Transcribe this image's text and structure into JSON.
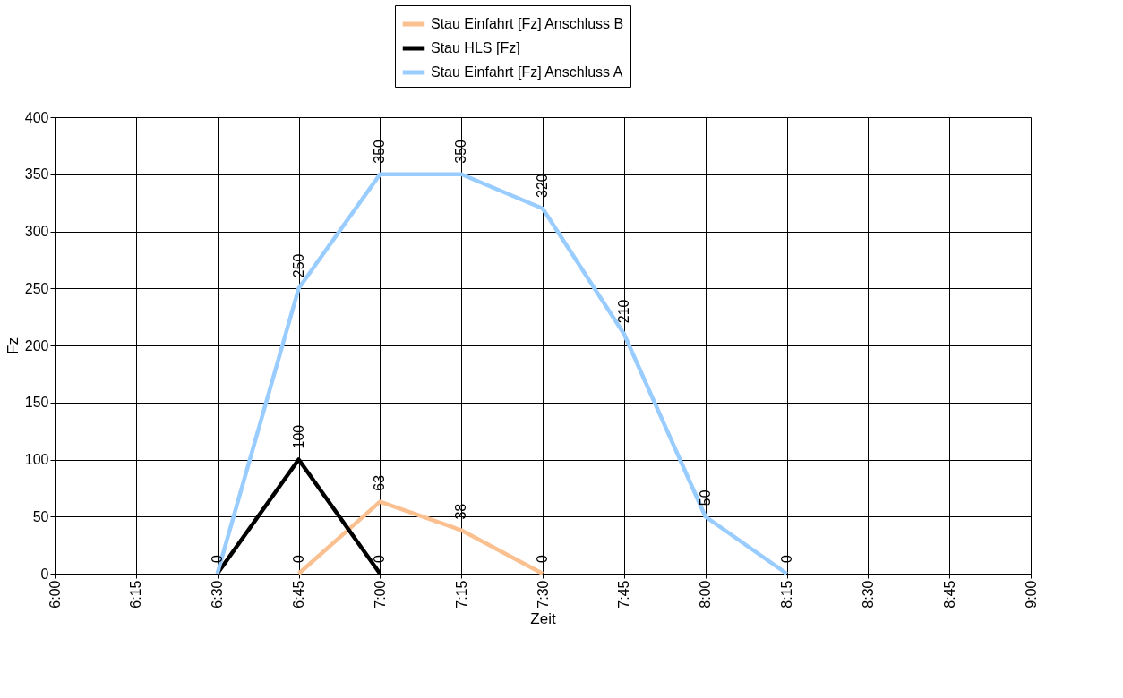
{
  "chart_data": {
    "type": "line",
    "xlabel": "Zeit",
    "ylabel": "Fz",
    "series": [
      {
        "name": "Stau Einfahrt [Fz] Anschluss B",
        "color": "#fac090",
        "x": [
          6.75,
          7.0,
          7.25,
          7.5
        ],
        "values": [
          0,
          63,
          38,
          0
        ],
        "value_labels": [
          "0",
          "63",
          "38",
          "0"
        ]
      },
      {
        "name": "Stau HLS [Fz]",
        "color": "#000000",
        "x": [
          6.5,
          6.75,
          7.0
        ],
        "values": [
          0,
          100,
          0
        ],
        "value_labels": [
          "0",
          "100",
          "0"
        ]
      },
      {
        "name": "Stau Einfahrt [Fz] Anschluss A",
        "color": "#99ccff",
        "x": [
          6.5,
          6.75,
          7.0,
          7.25,
          7.5,
          7.75,
          8.0,
          8.25
        ],
        "values": [
          0,
          250,
          350,
          350,
          320,
          210,
          50,
          0
        ],
        "value_labels": [
          null,
          "250",
          "350",
          "350",
          "320",
          "210",
          "50",
          "0"
        ]
      }
    ],
    "xlim": [
      6.0,
      9.0
    ],
    "xticks": [
      {
        "value": 6.0,
        "label": "6:00"
      },
      {
        "value": 6.25,
        "label": "6:15"
      },
      {
        "value": 6.5,
        "label": "6:30"
      },
      {
        "value": 6.75,
        "label": "6:45"
      },
      {
        "value": 7.0,
        "label": "7:00"
      },
      {
        "value": 7.25,
        "label": "7:15"
      },
      {
        "value": 7.5,
        "label": "7:30"
      },
      {
        "value": 7.75,
        "label": "7:45"
      },
      {
        "value": 8.0,
        "label": "8:00"
      },
      {
        "value": 8.25,
        "label": "8:15"
      },
      {
        "value": 8.5,
        "label": "8:30"
      },
      {
        "value": 8.75,
        "label": "8:45"
      },
      {
        "value": 9.0,
        "label": "9:00"
      }
    ],
    "ylim": [
      0,
      400
    ],
    "yticks": [
      0,
      50,
      100,
      150,
      200,
      250,
      300,
      350,
      400
    ],
    "grid": true,
    "legend": "top",
    "marker": "none",
    "line_style": "solid"
  }
}
